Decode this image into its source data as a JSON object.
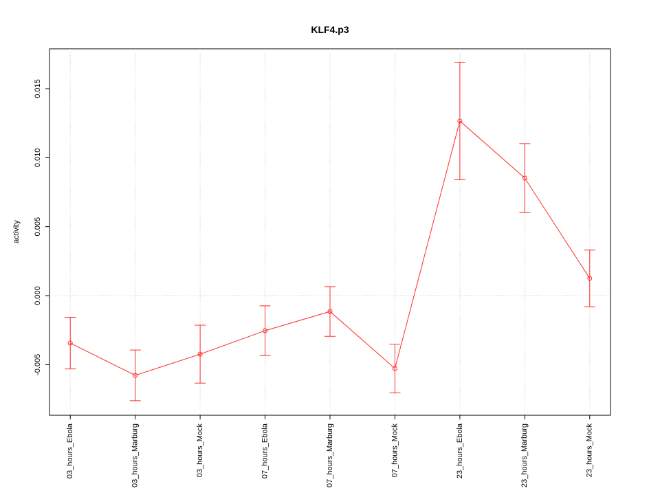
{
  "chart_data": {
    "type": "line",
    "title": "KLF4.p3",
    "y_label": "activity",
    "categories": [
      "03_hours_Ebola",
      "03_hours_Marburg",
      "03_hours_Mock",
      "07_hours_Ebola",
      "07_hours_Marburg",
      "07_hours_Mock",
      "23_hours_Ebola",
      "23_hours_Marburg",
      "23_hours_Mock"
    ],
    "series": [
      {
        "name": "KLF4.p3",
        "color": "#ff2a2a",
        "values": [
          -0.00344,
          -0.00578,
          -0.00424,
          -0.00254,
          -0.00115,
          -0.00528,
          0.01266,
          0.00852,
          0.00125
        ],
        "errors": [
          0.00187,
          0.00184,
          0.0021,
          0.0018,
          0.0018,
          0.00177,
          0.00426,
          0.0025,
          0.00205
        ]
      }
    ],
    "ylim": [
      -0.00867,
      0.01789
    ],
    "yticks": [
      {
        "value": -0.005,
        "label": "-0.005"
      },
      {
        "value": 0,
        "label": "0.000"
      },
      {
        "value": 0.005,
        "label": "0.005"
      },
      {
        "value": 0.01,
        "label": "0.010"
      },
      {
        "value": 0.015,
        "label": "0.015"
      }
    ],
    "hline": 0,
    "grid": true
  }
}
